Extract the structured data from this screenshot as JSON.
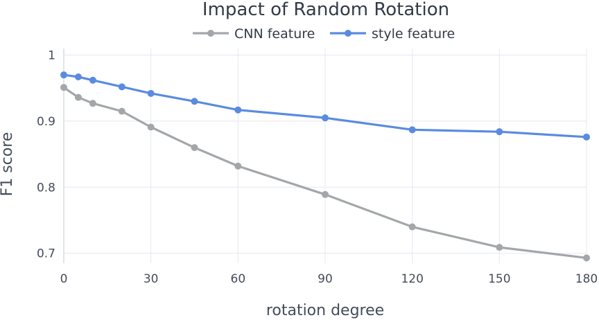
{
  "chart_data": {
    "type": "line",
    "title": "Impact of Random Rotation",
    "xlabel": "rotation degree",
    "ylabel": "F1 score",
    "xlim": [
      0,
      180
    ],
    "ylim": [
      0.685,
      1.01
    ],
    "x_ticks": [
      0,
      30,
      60,
      90,
      120,
      150,
      180
    ],
    "x_tick_labels": [
      "0",
      "30",
      "60",
      "90",
      "120",
      "150",
      "180"
    ],
    "y_ticks": [
      0.7,
      0.8,
      0.9,
      1.0
    ],
    "y_tick_labels": [
      "0.7",
      "0.8",
      "0.9",
      "1"
    ],
    "grid": true,
    "legend_position": "top-center",
    "x": [
      0,
      5,
      10,
      20,
      30,
      45,
      60,
      90,
      120,
      150,
      180
    ],
    "series": [
      {
        "name": "CNN feature",
        "color": "#a3a7aa",
        "values": [
          0.951,
          0.936,
          0.927,
          0.915,
          0.891,
          0.86,
          0.832,
          0.789,
          0.74,
          0.709,
          0.693
        ]
      },
      {
        "name": "style feature",
        "color": "#5a8be0",
        "values": [
          0.97,
          0.967,
          0.962,
          0.952,
          0.942,
          0.93,
          0.917,
          0.905,
          0.887,
          0.884,
          0.876
        ]
      }
    ]
  }
}
